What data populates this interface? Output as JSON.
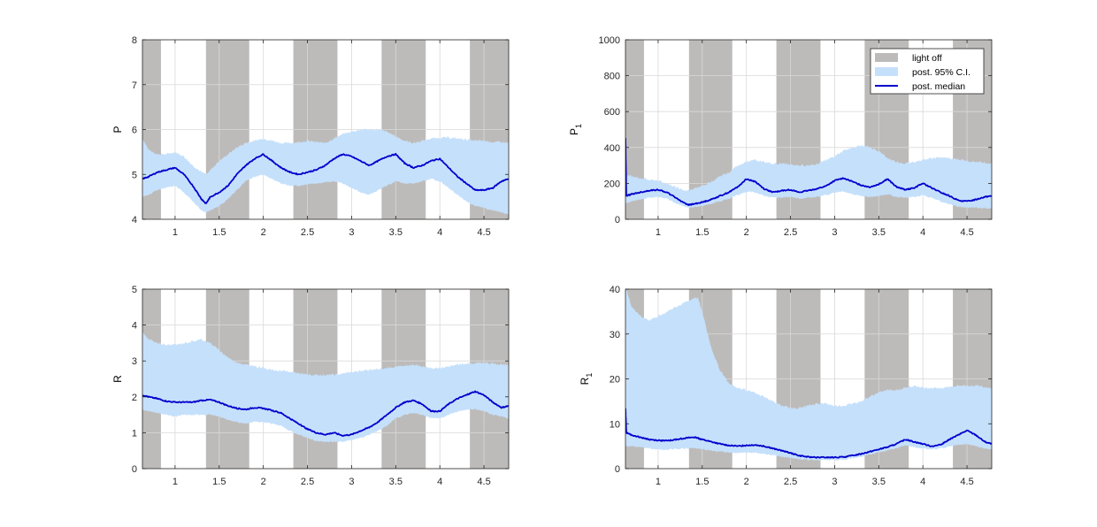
{
  "colors": {
    "light_off": "#bdbbb9",
    "ci": "#c5e0fb",
    "median": "#0000cc",
    "grid": "#d9d9d9",
    "axis": "#262626"
  },
  "legend": {
    "placement": "top-right",
    "items": [
      {
        "label": "light off",
        "kind": "patch",
        "color": "#bdbbb9"
      },
      {
        "label": "post. 95% C.I.",
        "kind": "patch",
        "color": "#c5e0fb"
      },
      {
        "label": "post. median",
        "kind": "line",
        "color": "#0000cc"
      }
    ]
  },
  "chart_data": [
    {
      "type": "area",
      "ylabel": "P",
      "ylabel_sub": "",
      "xlim": [
        0.63,
        4.78
      ],
      "ylim": [
        4,
        8
      ],
      "xticks": [
        1,
        1.5,
        2,
        2.5,
        3,
        3.5,
        4,
        4.5
      ],
      "xtick_labels": [
        "1",
        "1.5",
        "2",
        "2.5",
        "3",
        "3.5",
        "4",
        "4.5"
      ],
      "yticks": [
        4,
        5,
        6,
        7,
        8
      ],
      "ytick_labels": [
        "4",
        "5",
        "6",
        "7",
        "8"
      ],
      "grid": true,
      "light_off": [
        [
          0.63,
          0.84
        ],
        [
          1.35,
          1.84
        ],
        [
          2.34,
          2.84
        ],
        [
          3.34,
          3.84
        ],
        [
          4.34,
          4.78
        ]
      ],
      "x": [
        0.63,
        0.7,
        0.8,
        0.9,
        1.0,
        1.1,
        1.2,
        1.3,
        1.35,
        1.4,
        1.5,
        1.6,
        1.7,
        1.8,
        1.9,
        2.0,
        2.1,
        2.2,
        2.3,
        2.4,
        2.5,
        2.6,
        2.7,
        2.8,
        2.9,
        3.0,
        3.1,
        3.2,
        3.3,
        3.4,
        3.5,
        3.6,
        3.7,
        3.8,
        3.9,
        4.0,
        4.1,
        4.2,
        4.3,
        4.4,
        4.5,
        4.6,
        4.7,
        4.78
      ],
      "median": [
        4.9,
        4.95,
        5.05,
        5.1,
        5.15,
        5.0,
        4.75,
        4.45,
        4.35,
        4.5,
        4.6,
        4.75,
        5.0,
        5.2,
        5.35,
        5.45,
        5.3,
        5.15,
        5.05,
        5.0,
        5.05,
        5.1,
        5.2,
        5.35,
        5.45,
        5.4,
        5.3,
        5.2,
        5.3,
        5.4,
        5.45,
        5.25,
        5.15,
        5.2,
        5.3,
        5.35,
        5.15,
        4.95,
        4.8,
        4.65,
        4.65,
        4.7,
        4.85,
        4.9
      ],
      "ci_lower": [
        4.5,
        4.55,
        4.65,
        4.7,
        4.75,
        4.6,
        4.4,
        4.2,
        4.15,
        4.2,
        4.3,
        4.45,
        4.65,
        4.85,
        4.95,
        5.0,
        4.9,
        4.8,
        4.75,
        4.75,
        4.78,
        4.8,
        4.82,
        4.85,
        4.8,
        4.7,
        4.6,
        4.55,
        4.65,
        4.75,
        4.85,
        4.8,
        4.8,
        4.85,
        4.9,
        4.85,
        4.7,
        4.55,
        4.4,
        4.3,
        4.25,
        4.2,
        4.15,
        4.1
      ],
      "ci_upper": [
        5.8,
        5.55,
        5.45,
        5.45,
        5.5,
        5.4,
        5.2,
        5.05,
        5.0,
        5.1,
        5.3,
        5.45,
        5.6,
        5.7,
        5.75,
        5.8,
        5.75,
        5.7,
        5.7,
        5.72,
        5.75,
        5.72,
        5.7,
        5.8,
        5.9,
        5.95,
        6.0,
        6.0,
        6.0,
        5.95,
        5.85,
        5.75,
        5.7,
        5.75,
        5.8,
        5.82,
        5.82,
        5.8,
        5.78,
        5.75,
        5.75,
        5.72,
        5.72,
        5.7
      ]
    },
    {
      "type": "area",
      "ylabel": "P",
      "ylabel_sub": "1",
      "xlim": [
        0.63,
        4.78
      ],
      "ylim": [
        0,
        1000
      ],
      "xticks": [
        1,
        1.5,
        2,
        2.5,
        3,
        3.5,
        4,
        4.5
      ],
      "xtick_labels": [
        "1",
        "1.5",
        "2",
        "2.5",
        "3",
        "3.5",
        "4",
        "4.5"
      ],
      "yticks": [
        0,
        200,
        400,
        600,
        800,
        1000
      ],
      "ytick_labels": [
        "0",
        "200",
        "400",
        "600",
        "800",
        "1000"
      ],
      "grid": true,
      "light_off": [
        [
          0.63,
          0.84
        ],
        [
          1.35,
          1.84
        ],
        [
          2.34,
          2.84
        ],
        [
          3.34,
          3.84
        ],
        [
          4.34,
          4.78
        ]
      ],
      "x": [
        0.63,
        0.64,
        0.7,
        0.8,
        0.9,
        1.0,
        1.1,
        1.2,
        1.3,
        1.35,
        1.4,
        1.5,
        1.6,
        1.7,
        1.8,
        1.9,
        2.0,
        2.1,
        2.2,
        2.3,
        2.4,
        2.5,
        2.6,
        2.7,
        2.8,
        2.9,
        3.0,
        3.1,
        3.2,
        3.3,
        3.4,
        3.5,
        3.6,
        3.7,
        3.8,
        3.9,
        4.0,
        4.1,
        4.2,
        4.3,
        4.4,
        4.5,
        4.6,
        4.7,
        4.78
      ],
      "median": [
        450,
        130,
        140,
        150,
        160,
        165,
        150,
        120,
        90,
        80,
        85,
        95,
        110,
        130,
        150,
        180,
        225,
        210,
        170,
        150,
        160,
        165,
        150,
        160,
        170,
        185,
        215,
        230,
        210,
        190,
        180,
        195,
        225,
        180,
        165,
        175,
        200,
        175,
        150,
        130,
        105,
        100,
        110,
        125,
        130
      ],
      "ci_lower": [
        90,
        90,
        100,
        110,
        120,
        125,
        115,
        90,
        70,
        65,
        68,
        75,
        85,
        100,
        115,
        135,
        155,
        150,
        130,
        120,
        120,
        125,
        115,
        120,
        125,
        135,
        150,
        155,
        140,
        130,
        125,
        130,
        140,
        125,
        120,
        125,
        135,
        120,
        100,
        85,
        70,
        65,
        65,
        62,
        60
      ],
      "ci_upper": [
        330,
        250,
        240,
        230,
        220,
        215,
        200,
        180,
        160,
        160,
        170,
        185,
        210,
        240,
        260,
        300,
        320,
        330,
        320,
        310,
        310,
        305,
        300,
        300,
        310,
        330,
        350,
        380,
        400,
        410,
        400,
        380,
        340,
        320,
        310,
        320,
        330,
        340,
        345,
        340,
        335,
        325,
        320,
        315,
        310
      ]
    },
    {
      "type": "area",
      "ylabel": "R",
      "ylabel_sub": "",
      "xlim": [
        0.63,
        4.78
      ],
      "ylim": [
        0,
        5
      ],
      "xticks": [
        1,
        1.5,
        2,
        2.5,
        3,
        3.5,
        4,
        4.5
      ],
      "xtick_labels": [
        "1",
        "1.5",
        "2",
        "2.5",
        "3",
        "3.5",
        "4",
        "4.5"
      ],
      "yticks": [
        0,
        1,
        2,
        3,
        4,
        5
      ],
      "ytick_labels": [
        "0",
        "1",
        "2",
        "3",
        "4",
        "5"
      ],
      "grid": true,
      "light_off": [
        [
          0.63,
          0.84
        ],
        [
          1.35,
          1.84
        ],
        [
          2.34,
          2.84
        ],
        [
          3.34,
          3.84
        ],
        [
          4.34,
          4.78
        ]
      ],
      "x": [
        0.63,
        0.7,
        0.8,
        0.9,
        1.0,
        1.1,
        1.2,
        1.3,
        1.4,
        1.5,
        1.6,
        1.7,
        1.8,
        1.9,
        2.0,
        2.1,
        2.2,
        2.3,
        2.4,
        2.5,
        2.6,
        2.7,
        2.8,
        2.9,
        3.0,
        3.1,
        3.2,
        3.3,
        3.4,
        3.5,
        3.6,
        3.7,
        3.8,
        3.9,
        4.0,
        4.1,
        4.2,
        4.3,
        4.4,
        4.5,
        4.6,
        4.7,
        4.78
      ],
      "median": [
        2.05,
        2.0,
        1.95,
        1.88,
        1.85,
        1.85,
        1.85,
        1.9,
        1.92,
        1.85,
        1.75,
        1.68,
        1.65,
        1.7,
        1.68,
        1.62,
        1.55,
        1.4,
        1.25,
        1.1,
        1.0,
        0.95,
        1.0,
        0.92,
        0.95,
        1.05,
        1.15,
        1.3,
        1.5,
        1.7,
        1.85,
        1.9,
        1.8,
        1.6,
        1.6,
        1.8,
        1.95,
        2.05,
        2.15,
        2.05,
        1.85,
        1.7,
        1.75
      ],
      "ci_lower": [
        1.65,
        1.6,
        1.55,
        1.5,
        1.45,
        1.5,
        1.5,
        1.5,
        1.5,
        1.45,
        1.35,
        1.3,
        1.25,
        1.3,
        1.3,
        1.25,
        1.2,
        1.05,
        0.95,
        0.85,
        0.78,
        0.75,
        0.75,
        0.75,
        0.8,
        0.85,
        0.95,
        1.05,
        1.2,
        1.4,
        1.5,
        1.55,
        1.5,
        1.4,
        1.4,
        1.5,
        1.6,
        1.65,
        1.65,
        1.6,
        1.5,
        1.45,
        1.4
      ],
      "ci_upper": [
        3.8,
        3.6,
        3.5,
        3.45,
        3.45,
        3.5,
        3.55,
        3.6,
        3.5,
        3.3,
        3.1,
        2.95,
        2.9,
        2.85,
        2.8,
        2.75,
        2.72,
        2.7,
        2.65,
        2.62,
        2.6,
        2.6,
        2.62,
        2.65,
        2.7,
        2.72,
        2.75,
        2.78,
        2.8,
        2.85,
        2.85,
        2.9,
        2.85,
        2.8,
        2.8,
        2.85,
        2.9,
        2.92,
        2.95,
        2.95,
        2.92,
        2.9,
        2.9
      ]
    },
    {
      "type": "area",
      "ylabel": "R",
      "ylabel_sub": "1",
      "xlim": [
        0.63,
        4.78
      ],
      "ylim": [
        0,
        40
      ],
      "xticks": [
        1,
        1.5,
        2,
        2.5,
        3,
        3.5,
        4,
        4.5
      ],
      "xtick_labels": [
        "1",
        "1.5",
        "2",
        "2.5",
        "3",
        "3.5",
        "4",
        "4.5"
      ],
      "yticks": [
        0,
        10,
        20,
        30,
        40
      ],
      "ytick_labels": [
        "0",
        "10",
        "20",
        "30",
        "40"
      ],
      "grid": true,
      "light_off": [
        [
          0.63,
          0.84
        ],
        [
          1.35,
          1.84
        ],
        [
          2.34,
          2.84
        ],
        [
          3.34,
          3.84
        ],
        [
          4.34,
          4.78
        ]
      ],
      "x": [
        0.63,
        0.64,
        0.7,
        0.8,
        0.9,
        1.0,
        1.1,
        1.2,
        1.3,
        1.4,
        1.45,
        1.5,
        1.6,
        1.7,
        1.8,
        1.9,
        2.0,
        2.1,
        2.2,
        2.3,
        2.4,
        2.5,
        2.6,
        2.7,
        2.8,
        2.9,
        3.0,
        3.1,
        3.2,
        3.3,
        3.4,
        3.5,
        3.6,
        3.7,
        3.8,
        3.9,
        4.0,
        4.1,
        4.2,
        4.3,
        4.4,
        4.5,
        4.6,
        4.7,
        4.78
      ],
      "median": [
        13.5,
        8.0,
        7.5,
        7.0,
        6.5,
        6.3,
        6.2,
        6.5,
        6.8,
        7.0,
        6.8,
        6.5,
        6.0,
        5.5,
        5.2,
        5.0,
        5.2,
        5.3,
        5.0,
        4.5,
        4.0,
        3.5,
        2.9,
        2.6,
        2.5,
        2.5,
        2.5,
        2.6,
        2.9,
        3.3,
        3.8,
        4.3,
        4.8,
        5.5,
        6.5,
        6.0,
        5.5,
        5.0,
        5.3,
        6.5,
        7.5,
        8.5,
        7.5,
        6.0,
        5.5
      ],
      "ci_lower": [
        5.0,
        5.0,
        5.0,
        4.8,
        4.5,
        4.3,
        4.2,
        4.4,
        4.5,
        4.6,
        4.5,
        4.3,
        4.0,
        3.8,
        3.6,
        3.5,
        3.6,
        3.5,
        3.3,
        3.0,
        2.7,
        2.4,
        2.1,
        2.0,
        1.9,
        1.9,
        1.9,
        2.0,
        2.3,
        2.7,
        3.2,
        3.6,
        4.0,
        4.5,
        5.2,
        4.8,
        4.5,
        4.3,
        4.5,
        5.0,
        5.3,
        5.5,
        5.0,
        4.5,
        4.3
      ],
      "ci_upper": [
        40,
        40,
        36,
        34,
        33,
        34,
        35,
        36,
        37,
        38,
        38,
        35,
        27,
        22,
        19,
        18,
        17.5,
        17,
        16,
        15,
        14,
        13.5,
        13.5,
        14,
        14.5,
        14.5,
        14,
        14,
        14.5,
        15,
        16,
        17,
        17.5,
        17.5,
        18,
        18.5,
        18,
        18,
        18,
        18.2,
        18.5,
        18.5,
        18.5,
        18.2,
        18
      ]
    }
  ]
}
